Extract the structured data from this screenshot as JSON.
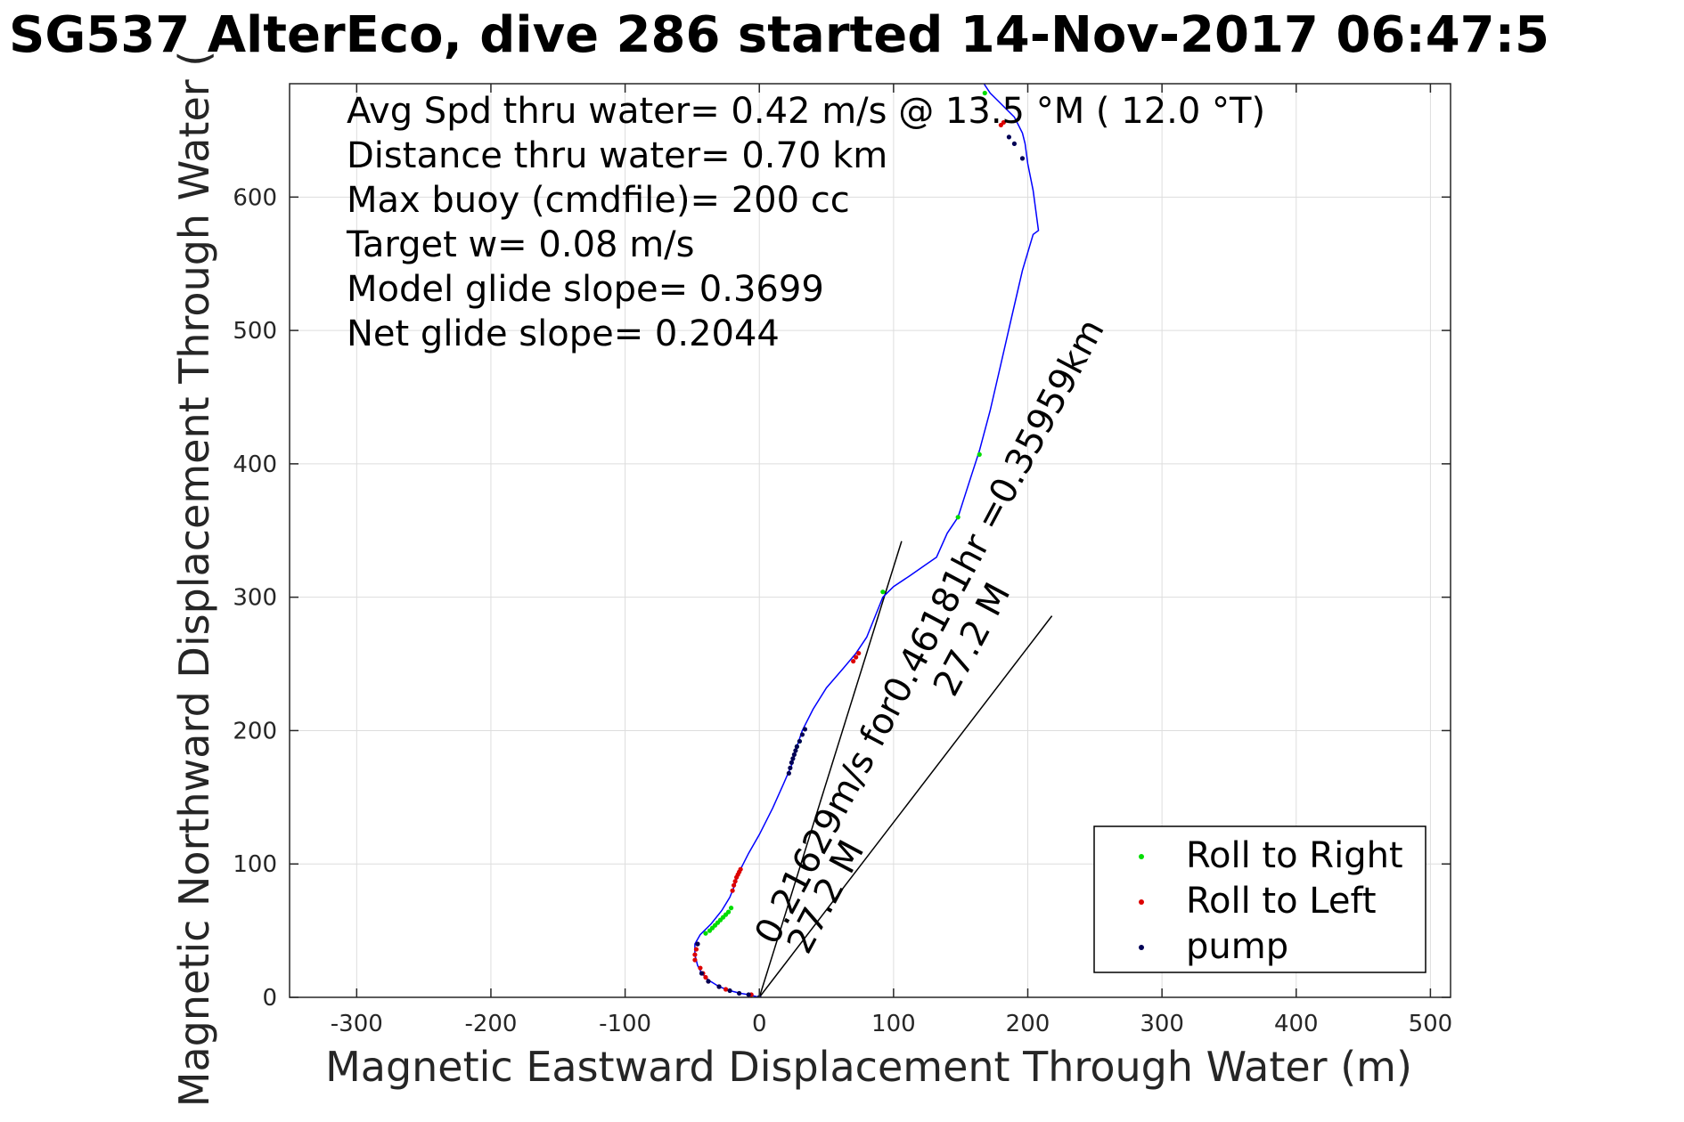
{
  "chart_data": {
    "type": "line",
    "title": "SG537 AlterEco, dive 286 started 14-Nov-2017 06:47:5",
    "xlabel": "Magnetic Eastward Displacement Through Water (m)",
    "ylabel": "Magnetic Northward Displacement Through Water (",
    "xlim": [
      -350,
      515
    ],
    "ylim": [
      0,
      685
    ],
    "xticks": [
      -300,
      -200,
      -100,
      0,
      100,
      200,
      300,
      400,
      500
    ],
    "yticks": [
      0,
      100,
      200,
      300,
      400,
      500,
      600
    ],
    "grid": true,
    "track": {
      "color": "#0000ff",
      "x": [
        0,
        -8,
        -14,
        -22,
        -30,
        -38,
        -43,
        -46,
        -48,
        -48,
        -44,
        -36,
        -28,
        -22,
        -18,
        -16,
        -14,
        -8,
        0,
        10,
        18,
        24,
        28,
        32,
        40,
        50,
        62,
        72,
        80,
        86,
        92,
        100,
        112,
        132,
        140,
        148,
        156,
        164,
        172,
        180,
        188,
        196,
        204,
        208,
        204,
        200,
        198,
        196,
        194,
        190,
        184,
        178,
        172,
        168,
        165
      ],
      "y": [
        0,
        2,
        3,
        5,
        8,
        13,
        18,
        24,
        32,
        40,
        47,
        55,
        65,
        75,
        85,
        92,
        96,
        108,
        122,
        142,
        160,
        174,
        188,
        200,
        216,
        232,
        246,
        258,
        270,
        285,
        300,
        308,
        316,
        330,
        348,
        360,
        385,
        410,
        440,
        475,
        510,
        545,
        572,
        575,
        605,
        625,
        640,
        648,
        652,
        660,
        666,
        672,
        678,
        684,
        690
      ]
    },
    "series": [
      {
        "name": "Roll to Right",
        "color": "#00dd00",
        "x": [
          -40,
          -37,
          -35,
          -33,
          -31,
          -29,
          -27,
          -25,
          -23,
          -21,
          28,
          30,
          92,
          148,
          164,
          168
        ],
        "y": [
          48,
          50,
          52,
          54,
          56,
          58,
          60,
          62,
          64,
          67,
          188,
          192,
          304,
          360,
          407,
          678
        ]
      },
      {
        "name": "Roll to Left",
        "color": "#dd0000",
        "x": [
          -48,
          -48,
          -47,
          -46,
          -44,
          -42,
          -40,
          -38,
          -30,
          -25,
          -20,
          -19,
          -18,
          -17,
          -16,
          -15,
          -14,
          -6,
          70,
          72,
          74,
          180,
          182
        ],
        "y": [
          28,
          32,
          36,
          40,
          22,
          18,
          15,
          12,
          8,
          6,
          80,
          84,
          87,
          90,
          92,
          94,
          96,
          2,
          252,
          255,
          258,
          654,
          656
        ]
      },
      {
        "name": "pump",
        "color": "#000055",
        "x": [
          -46,
          -43,
          -38,
          -30,
          -22,
          -15,
          -8,
          0,
          22,
          23,
          24,
          25,
          26,
          27,
          28,
          30,
          32,
          34,
          186,
          190,
          196
        ],
        "y": [
          40,
          18,
          12,
          8,
          5,
          3,
          2,
          0,
          168,
          172,
          176,
          179,
          182,
          185,
          188,
          192,
          197,
          201,
          645,
          640,
          629
        ]
      }
    ],
    "lines": [
      {
        "x": [
          0,
          106
        ],
        "y": [
          0,
          342
        ]
      },
      {
        "x": [
          0,
          218
        ],
        "y": [
          0,
          286
        ]
      }
    ],
    "stats": [
      "Avg Spd thru water=  0.42 m/s @  13.5 °M ( 12.0 °T)",
      "Distance thru water=  0.70 km",
      "Max buoy (cmdfile)= 200 cc",
      "Target w= 0.08 m/s",
      "Model glide slope= 0.3699",
      "Net glide slope= 0.2044"
    ],
    "annotations": [
      {
        "text": "0.21629m/s for0.46181hr =0.35959km",
        "x": 12,
        "y": 38,
        "angle": -62
      },
      {
        "text": "27.2 M",
        "x": 145,
        "y": 224,
        "angle": -62
      },
      {
        "text": "27.2 M",
        "x": 36,
        "y": 31,
        "angle": -62
      }
    ],
    "legend_position": "bottom-right"
  }
}
